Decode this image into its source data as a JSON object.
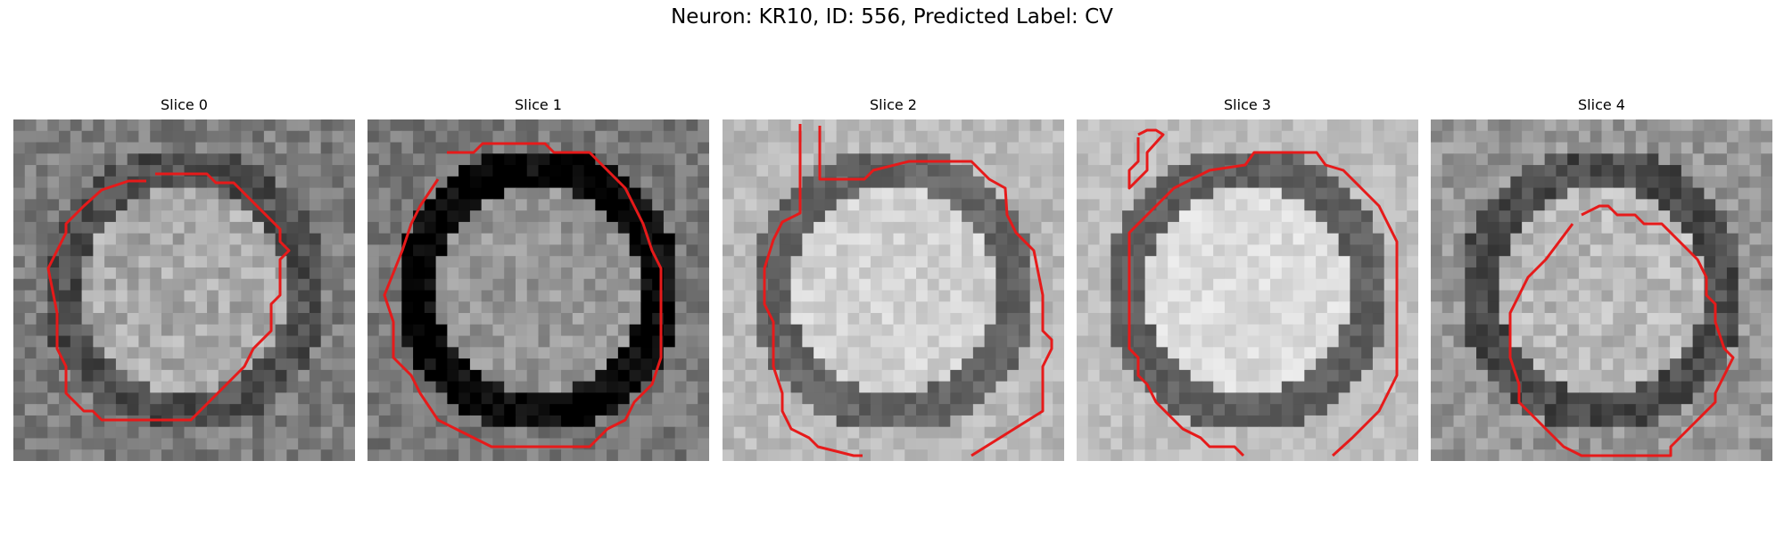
{
  "figure": {
    "title": "Neuron: KR10, ID: 556, Predicted Label: CV"
  },
  "panels": [
    {
      "title": "Slice 0",
      "seed": 101,
      "base": 125,
      "contrast": 60,
      "ringDark": 45,
      "innerBright": 45
    },
    {
      "title": "Slice 1",
      "seed": 202,
      "base": 120,
      "contrast": 55,
      "ringDark": 115,
      "innerBright": 30
    },
    {
      "title": "Slice 2",
      "seed": 303,
      "base": 185,
      "contrast": 40,
      "ringDark": 85,
      "innerBright": 25
    },
    {
      "title": "Slice 3",
      "seed": 404,
      "base": 190,
      "contrast": 35,
      "ringDark": 95,
      "innerBright": 30
    },
    {
      "title": "Slice 4",
      "seed": 505,
      "base": 150,
      "contrast": 55,
      "ringDark": 75,
      "innerBright": 35
    }
  ],
  "colors": {
    "contour": "#e61a1a"
  }
}
